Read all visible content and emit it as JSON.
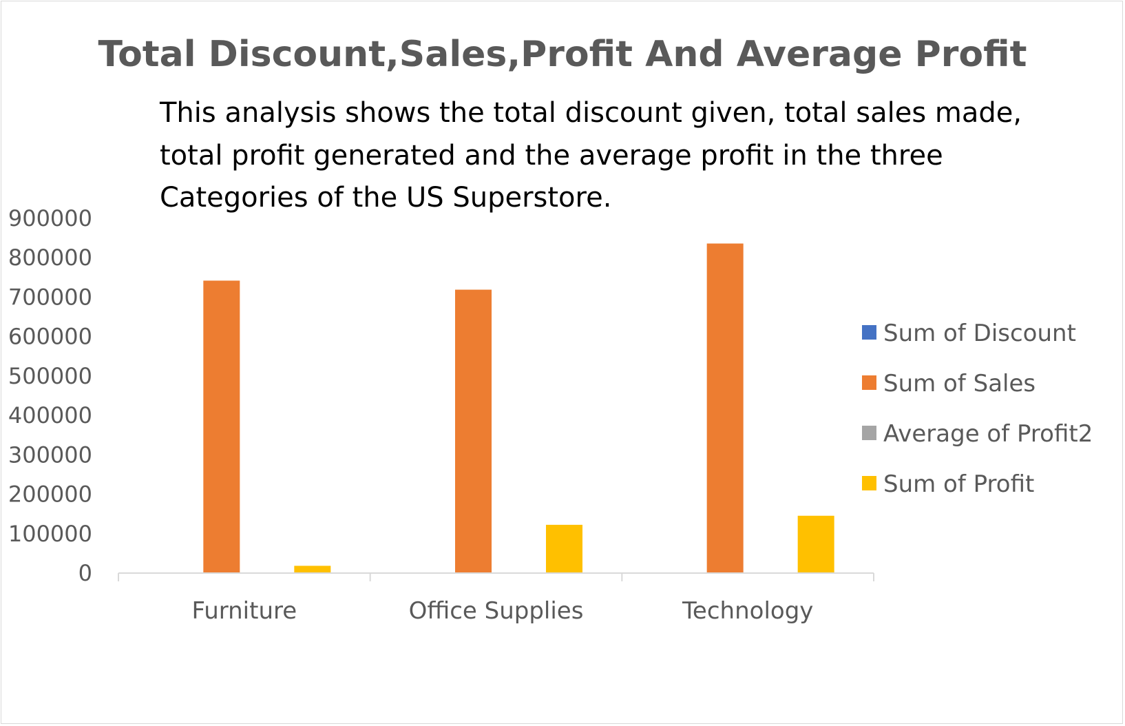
{
  "chart_data": {
    "type": "bar",
    "title": "Total Discount,Sales,Profit And Average Profit",
    "annotation": [
      "This analysis shows the total discount given, total sales made,",
      "total profit generated and the average profit in the three",
      "Categories of the US Superstore."
    ],
    "categories": [
      "Furniture",
      "Office Supplies",
      "Technology"
    ],
    "series": [
      {
        "name": "Sum of Discount",
        "color": "#4472C4",
        "values": [
          369,
          947,
          244
        ]
      },
      {
        "name": "Sum of Sales",
        "color": "#ED7D31",
        "values": [
          742000,
          719047,
          836154
        ]
      },
      {
        "name": "Average of Profit2",
        "color": "#A5A5A5",
        "values": [
          9,
          20,
          79
        ]
      },
      {
        "name": "Sum of Profit",
        "color": "#FFC000",
        "values": [
          18451,
          122491,
          145455
        ]
      }
    ],
    "ylim": [
      0,
      900000
    ],
    "yticks": [
      "0",
      "100000",
      "200000",
      "300000",
      "400000",
      "500000",
      "600000",
      "700000",
      "800000",
      "900000"
    ],
    "grid": false,
    "legend_position": "right",
    "xlabel": "",
    "ylabel": ""
  }
}
